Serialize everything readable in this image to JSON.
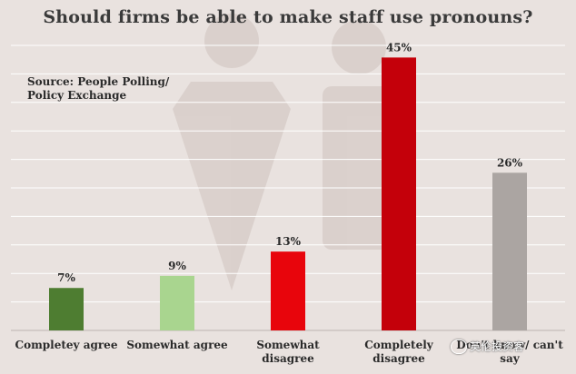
{
  "title": "Should firms be able to make staff use pronouns?",
  "source": "Source: People Polling/ Policy Exchange",
  "watermark": "英伦投资客",
  "chart_data": {
    "type": "bar",
    "categories": [
      "Completey agree",
      "Somewhat agree",
      "Somewhat disagree",
      "Completely disagree",
      "Don't know/ can't say"
    ],
    "category_lines": [
      [
        "Completey agree"
      ],
      [
        "Somewhat agree"
      ],
      [
        "Somewhat",
        "disagree"
      ],
      [
        "Completely",
        "disagree"
      ],
      [
        "Don't know/ can't",
        "say"
      ]
    ],
    "values": [
      7,
      9,
      13,
      45,
      26
    ],
    "value_labels": [
      "7%",
      "9%",
      "13%",
      "45%",
      "26%"
    ],
    "colors": [
      "#4e7d31",
      "#a9d58f",
      "#e8050c",
      "#c4000a",
      "#aba5a2"
    ],
    "ylim": [
      0,
      47
    ],
    "grid": true
  }
}
